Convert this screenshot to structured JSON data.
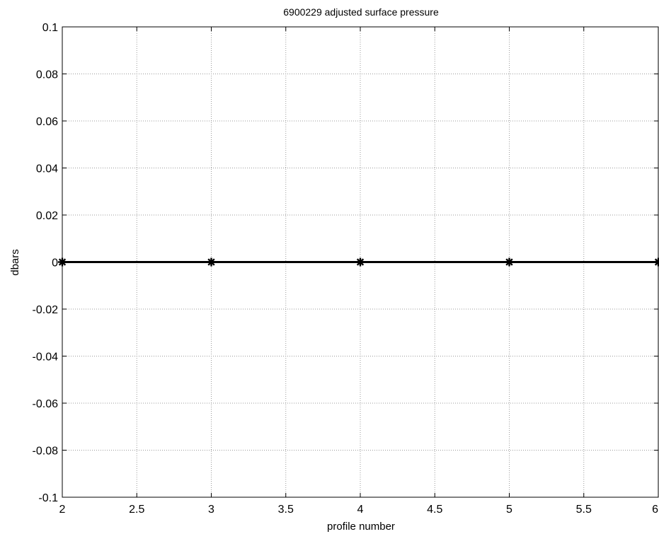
{
  "chart_data": {
    "type": "line",
    "title": "6900229 adjusted surface pressure",
    "xlabel": "profile number",
    "ylabel": "dbars",
    "xlim": [
      2,
      6
    ],
    "ylim": [
      -0.1,
      0.1
    ],
    "x_ticks": [
      "2",
      "2.5",
      "3",
      "3.5",
      "4",
      "4.5",
      "5",
      "5.5",
      "6"
    ],
    "y_ticks": [
      "0.1",
      "0.08",
      "0.06",
      "0.04",
      "0.02",
      "0",
      "-0.02",
      "-0.04",
      "-0.06",
      "-0.08",
      "-0.1"
    ],
    "grid": true,
    "series": [
      {
        "x": [
          2,
          3,
          4,
          5,
          6
        ],
        "values": [
          0,
          0,
          0,
          0,
          0
        ],
        "color": "#000000",
        "marker": "asterisk"
      }
    ]
  }
}
